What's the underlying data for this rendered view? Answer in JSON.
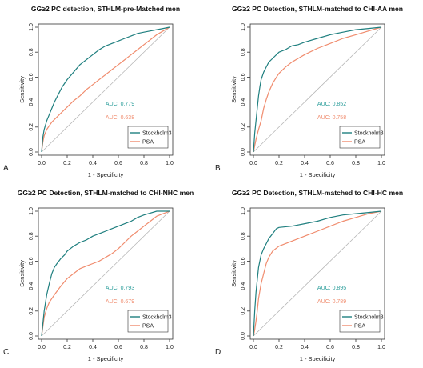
{
  "chart_data": [
    {
      "type": "line",
      "title": "GG≥2 PC detection, STHLM-pre-Matched men",
      "panel_label": "A",
      "xlabel": "1 - Specificity",
      "ylabel": "Sensitivity",
      "xlim": [
        0,
        1
      ],
      "ylim": [
        0,
        1
      ],
      "xticks": [
        "0.0",
        "0.2",
        "0.4",
        "0.6",
        "0.8",
        "1.0"
      ],
      "yticks": [
        "0.0",
        "0.2",
        "0.4",
        "0.6",
        "0.8",
        "1.0"
      ],
      "grid": false,
      "legend_position": "bottom-right",
      "auc": [
        {
          "text": "AUC: 0.779",
          "color": "#2a9d9a"
        },
        {
          "text": "AUC: 0.638",
          "color": "#f08c6e"
        }
      ],
      "series": [
        {
          "name": "Stockholm3",
          "color": "#1f7f7f",
          "x": [
            0,
            0.01,
            0.02,
            0.04,
            0.06,
            0.08,
            0.1,
            0.13,
            0.16,
            0.2,
            0.25,
            0.3,
            0.35,
            0.4,
            0.45,
            0.5,
            0.55,
            0.6,
            0.65,
            0.7,
            0.75,
            0.8,
            0.85,
            0.9,
            0.95,
            1.0
          ],
          "y": [
            0,
            0.12,
            0.18,
            0.25,
            0.3,
            0.35,
            0.4,
            0.46,
            0.52,
            0.58,
            0.64,
            0.7,
            0.74,
            0.78,
            0.82,
            0.85,
            0.87,
            0.89,
            0.91,
            0.93,
            0.95,
            0.96,
            0.97,
            0.98,
            0.99,
            1.0
          ]
        },
        {
          "name": "PSA",
          "color": "#f08c6e",
          "x": [
            0,
            0.01,
            0.02,
            0.04,
            0.06,
            0.08,
            0.1,
            0.15,
            0.2,
            0.25,
            0.3,
            0.35,
            0.4,
            0.45,
            0.5,
            0.55,
            0.6,
            0.65,
            0.7,
            0.75,
            0.8,
            0.85,
            0.9,
            0.95,
            1.0
          ],
          "y": [
            0,
            0.08,
            0.13,
            0.18,
            0.21,
            0.24,
            0.26,
            0.31,
            0.36,
            0.41,
            0.45,
            0.5,
            0.54,
            0.58,
            0.62,
            0.66,
            0.7,
            0.74,
            0.78,
            0.82,
            0.86,
            0.9,
            0.94,
            0.97,
            1.0
          ]
        }
      ]
    },
    {
      "type": "line",
      "title": "GG≥2 PC Detection, STHLM-matched to CHI-AA men",
      "panel_label": "B",
      "xlabel": "1 - Specificity",
      "ylabel": "Sensitivity",
      "xlim": [
        0,
        1
      ],
      "ylim": [
        0,
        1
      ],
      "xticks": [
        "0.0",
        "0.2",
        "0.4",
        "0.6",
        "0.8",
        "1.0"
      ],
      "yticks": [
        "0.0",
        "0.2",
        "0.4",
        "0.6",
        "0.8",
        "1.0"
      ],
      "grid": false,
      "legend_position": "bottom-right",
      "auc": [
        {
          "text": "AUC: 0.852",
          "color": "#2a9d9a"
        },
        {
          "text": "AUC: 0.758",
          "color": "#f08c6e"
        }
      ],
      "series": [
        {
          "name": "Stockholm3",
          "color": "#1f7f7f",
          "x": [
            0,
            0.01,
            0.02,
            0.03,
            0.04,
            0.05,
            0.06,
            0.08,
            0.1,
            0.12,
            0.15,
            0.2,
            0.25,
            0.3,
            0.35,
            0.4,
            0.5,
            0.6,
            0.7,
            0.8,
            0.9,
            1.0
          ],
          "y": [
            0,
            0.15,
            0.25,
            0.35,
            0.45,
            0.52,
            0.58,
            0.64,
            0.68,
            0.72,
            0.75,
            0.8,
            0.82,
            0.85,
            0.86,
            0.88,
            0.91,
            0.94,
            0.96,
            0.98,
            0.99,
            1.0
          ]
        },
        {
          "name": "PSA",
          "color": "#f08c6e",
          "x": [
            0,
            0.01,
            0.02,
            0.04,
            0.06,
            0.08,
            0.1,
            0.12,
            0.15,
            0.18,
            0.2,
            0.25,
            0.3,
            0.35,
            0.4,
            0.5,
            0.6,
            0.7,
            0.8,
            0.9,
            1.0
          ],
          "y": [
            0,
            0.05,
            0.1,
            0.18,
            0.25,
            0.35,
            0.42,
            0.48,
            0.55,
            0.6,
            0.63,
            0.68,
            0.72,
            0.75,
            0.78,
            0.83,
            0.87,
            0.91,
            0.94,
            0.97,
            1.0
          ]
        }
      ]
    },
    {
      "type": "line",
      "title": "GG≥2 PC Detection, STHLM-matched to CHI-NHC men",
      "panel_label": "C",
      "xlabel": "1 - Specificity",
      "ylabel": "Sensitivity",
      "xlim": [
        0,
        1
      ],
      "ylim": [
        0,
        1
      ],
      "xticks": [
        "0.0",
        "0.2",
        "0.4",
        "0.6",
        "0.8",
        "1.0"
      ],
      "yticks": [
        "0.0",
        "0.2",
        "0.4",
        "0.6",
        "0.8",
        "1.0"
      ],
      "grid": false,
      "legend_position": "bottom-right",
      "auc": [
        {
          "text": "AUC: 0.793",
          "color": "#2a9d9a"
        },
        {
          "text": "AUC: 0.679",
          "color": "#f08c6e"
        }
      ],
      "series": [
        {
          "name": "Stockholm3",
          "color": "#1f7f7f",
          "x": [
            0,
            0.02,
            0.04,
            0.06,
            0.08,
            0.1,
            0.12,
            0.15,
            0.18,
            0.2,
            0.25,
            0.3,
            0.35,
            0.4,
            0.45,
            0.5,
            0.55,
            0.6,
            0.65,
            0.7,
            0.75,
            0.8,
            0.9,
            1.0
          ],
          "y": [
            0,
            0.2,
            0.33,
            0.42,
            0.5,
            0.55,
            0.58,
            0.62,
            0.65,
            0.68,
            0.72,
            0.75,
            0.77,
            0.8,
            0.82,
            0.84,
            0.86,
            0.88,
            0.9,
            0.92,
            0.95,
            0.97,
            1.0,
            1.0
          ]
        },
        {
          "name": "PSA",
          "color": "#f08c6e",
          "x": [
            0,
            0.02,
            0.04,
            0.06,
            0.08,
            0.1,
            0.15,
            0.2,
            0.25,
            0.3,
            0.35,
            0.4,
            0.45,
            0.5,
            0.55,
            0.6,
            0.65,
            0.7,
            0.75,
            0.8,
            0.85,
            0.9,
            0.95,
            1.0
          ],
          "y": [
            0,
            0.15,
            0.22,
            0.27,
            0.3,
            0.33,
            0.4,
            0.46,
            0.5,
            0.54,
            0.56,
            0.58,
            0.6,
            0.63,
            0.66,
            0.7,
            0.75,
            0.8,
            0.84,
            0.88,
            0.92,
            0.96,
            0.98,
            1.0
          ]
        }
      ]
    },
    {
      "type": "line",
      "title": "GG≥2 PC Detection, STHLM-matched to CHI-HC men",
      "panel_label": "D",
      "xlabel": "1 - Specificity",
      "ylabel": "Sensitivity",
      "xlim": [
        0,
        1
      ],
      "ylim": [
        0,
        1
      ],
      "xticks": [
        "0.0",
        "0.2",
        "0.4",
        "0.6",
        "0.8",
        "1.0"
      ],
      "yticks": [
        "0.0",
        "0.2",
        "0.4",
        "0.6",
        "0.8",
        "1.0"
      ],
      "grid": false,
      "legend_position": "bottom-right",
      "auc": [
        {
          "text": "AUC: 0.895",
          "color": "#2a9d9a"
        },
        {
          "text": "AUC: 0.789",
          "color": "#f08c6e"
        }
      ],
      "series": [
        {
          "name": "Stockholm3",
          "color": "#1f7f7f",
          "x": [
            0,
            0.01,
            0.02,
            0.03,
            0.04,
            0.05,
            0.06,
            0.08,
            0.1,
            0.12,
            0.15,
            0.18,
            0.2,
            0.3,
            0.4,
            0.5,
            0.6,
            0.7,
            0.8,
            0.9,
            1.0
          ],
          "y": [
            0,
            0.2,
            0.35,
            0.45,
            0.55,
            0.6,
            0.65,
            0.7,
            0.74,
            0.78,
            0.82,
            0.86,
            0.87,
            0.88,
            0.9,
            0.92,
            0.95,
            0.97,
            0.98,
            0.99,
            1.0
          ]
        },
        {
          "name": "PSA",
          "color": "#f08c6e",
          "x": [
            0,
            0.01,
            0.02,
            0.03,
            0.04,
            0.06,
            0.08,
            0.1,
            0.12,
            0.15,
            0.2,
            0.25,
            0.3,
            0.4,
            0.5,
            0.6,
            0.7,
            0.8,
            0.9,
            1.0
          ],
          "y": [
            0,
            0.05,
            0.12,
            0.2,
            0.3,
            0.42,
            0.5,
            0.58,
            0.63,
            0.68,
            0.72,
            0.74,
            0.76,
            0.8,
            0.84,
            0.88,
            0.92,
            0.95,
            0.98,
            1.0
          ]
        }
      ]
    }
  ]
}
